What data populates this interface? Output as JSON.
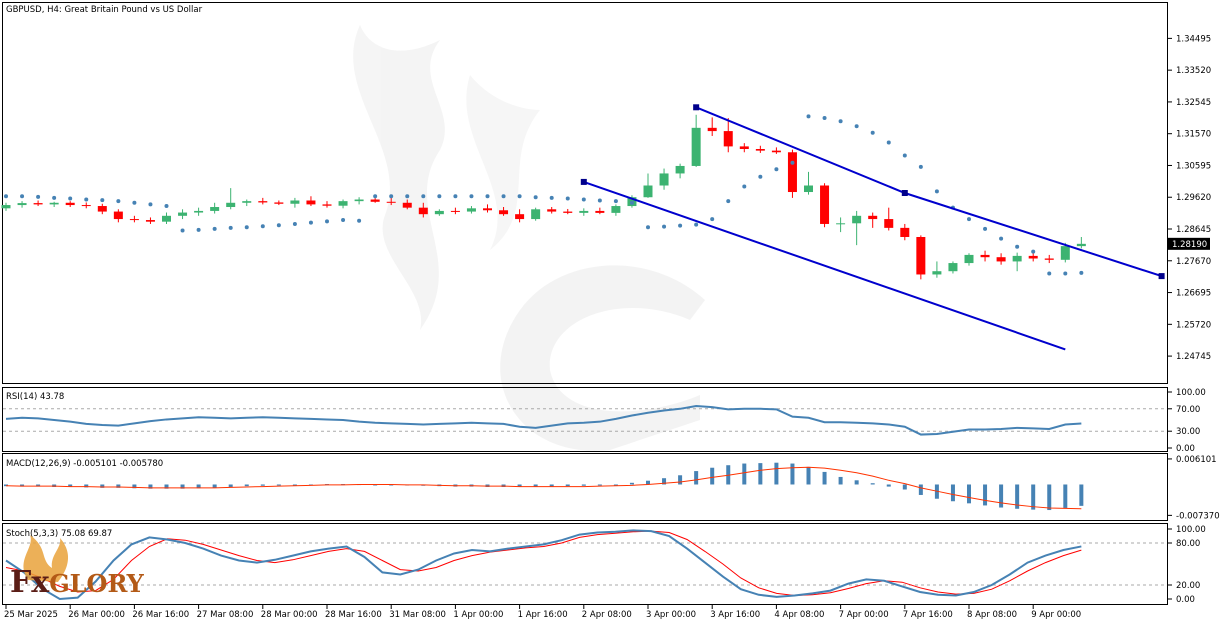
{
  "chart_data": [
    {
      "type": "candlestick",
      "title": "GBPUSD, H4:  Great Britain Pound vs US Dollar",
      "symbol": "GBPUSD",
      "timeframe": "H4",
      "ylim": [
        1.2395,
        1.3555
      ],
      "price_ticks": [
        "1.34495",
        "1.33520",
        "1.32545",
        "1.31570",
        "1.30595",
        "1.29620",
        "1.28645",
        "1.27670",
        "1.26695",
        "1.25720",
        "1.24745"
      ],
      "current_price": "1.28190",
      "x_ticks": [
        "25 Mar 2025",
        "26 Mar 00:00",
        "26 Mar 16:00",
        "27 Mar 08:00",
        "28 Mar 00:00",
        "28 Mar 16:00",
        "31 Mar 08:00",
        "1 Apr 00:00",
        "1 Apr 16:00",
        "2 Apr 08:00",
        "3 Apr 00:00",
        "3 Apr 16:00",
        "4 Apr 08:00",
        "7 Apr 00:00",
        "7 Apr 16:00",
        "8 Apr 08:00",
        "9 Apr 00:00"
      ],
      "candles": [
        [
          1.2928,
          1.2945,
          1.292,
          1.2938
        ],
        [
          1.2938,
          1.295,
          1.293,
          1.2944
        ],
        [
          1.2944,
          1.2952,
          1.2935,
          1.294
        ],
        [
          1.294,
          1.2948,
          1.2932,
          1.2945
        ],
        [
          1.2945,
          1.295,
          1.2932,
          1.2938
        ],
        [
          1.2938,
          1.2946,
          1.2928,
          1.2935
        ],
        [
          1.2935,
          1.2942,
          1.291,
          1.2918
        ],
        [
          1.2918,
          1.2925,
          1.2885,
          1.2895
        ],
        [
          1.2895,
          1.2905,
          1.2885,
          1.2892
        ],
        [
          1.2892,
          1.29,
          1.288,
          1.2887
        ],
        [
          1.2887,
          1.2915,
          1.288,
          1.2905
        ],
        [
          1.2905,
          1.2925,
          1.2895,
          1.2915
        ],
        [
          1.2915,
          1.293,
          1.2905,
          1.292
        ],
        [
          1.292,
          1.2945,
          1.2912,
          1.2932
        ],
        [
          1.2932,
          1.299,
          1.2925,
          1.2945
        ],
        [
          1.2945,
          1.2955,
          1.2935,
          1.295
        ],
        [
          1.295,
          1.296,
          1.294,
          1.2946
        ],
        [
          1.2946,
          1.2952,
          1.2938,
          1.2942
        ],
        [
          1.2942,
          1.296,
          1.293,
          1.2952
        ],
        [
          1.2952,
          1.2965,
          1.2935,
          1.294
        ],
        [
          1.294,
          1.295,
          1.293,
          1.2936
        ],
        [
          1.2936,
          1.2955,
          1.2928,
          1.295
        ],
        [
          1.295,
          1.2962,
          1.294,
          1.2955
        ],
        [
          1.2955,
          1.2965,
          1.2945,
          1.2948
        ],
        [
          1.2948,
          1.296,
          1.2938,
          1.2945
        ],
        [
          1.2945,
          1.2955,
          1.2925,
          1.293
        ],
        [
          1.293,
          1.2945,
          1.29,
          1.291
        ],
        [
          1.291,
          1.2925,
          1.2905,
          1.292
        ],
        [
          1.292,
          1.293,
          1.291,
          1.2918
        ],
        [
          1.2918,
          1.2935,
          1.2912,
          1.2928
        ],
        [
          1.2928,
          1.294,
          1.2915,
          1.2922
        ],
        [
          1.2922,
          1.2932,
          1.2905,
          1.291
        ],
        [
          1.291,
          1.2925,
          1.2885,
          1.2895
        ],
        [
          1.2895,
          1.293,
          1.289,
          1.2925
        ],
        [
          1.2925,
          1.2932,
          1.2912,
          1.2918
        ],
        [
          1.2918,
          1.2926,
          1.291,
          1.2914
        ],
        [
          1.2914,
          1.2928,
          1.2905,
          1.292
        ],
        [
          1.292,
          1.293,
          1.291,
          1.2914
        ],
        [
          1.2914,
          1.294,
          1.2905,
          1.2935
        ],
        [
          1.2935,
          1.2968,
          1.293,
          1.2962
        ],
        [
          1.2962,
          1.3035,
          1.296,
          1.2998
        ],
        [
          1.2998,
          1.305,
          1.2985,
          1.3035
        ],
        [
          1.3035,
          1.3065,
          1.302,
          1.3058
        ],
        [
          1.3058,
          1.3215,
          1.3055,
          1.3175
        ],
        [
          1.3175,
          1.3207,
          1.315,
          1.3165
        ],
        [
          1.3165,
          1.3205,
          1.31,
          1.3118
        ],
        [
          1.3118,
          1.3128,
          1.31,
          1.311
        ],
        [
          1.311,
          1.312,
          1.3098,
          1.3105
        ],
        [
          1.3105,
          1.3115,
          1.3095,
          1.31
        ],
        [
          1.31,
          1.3108,
          1.296,
          1.2978
        ],
        [
          1.2978,
          1.304,
          1.297,
          1.2998
        ],
        [
          1.2998,
          1.3005,
          1.287,
          1.288
        ],
        [
          1.288,
          1.29,
          1.2855,
          1.2882
        ],
        [
          1.2882,
          1.292,
          1.2815,
          1.2905
        ],
        [
          1.2905,
          1.2915,
          1.2868,
          1.2895
        ],
        [
          1.2895,
          1.293,
          1.286,
          1.2868
        ],
        [
          1.2868,
          1.288,
          1.283,
          1.284
        ],
        [
          1.284,
          1.2845,
          1.271,
          1.2725
        ],
        [
          1.2725,
          1.2765,
          1.2715,
          1.2735
        ],
        [
          1.2735,
          1.2765,
          1.2728,
          1.276
        ],
        [
          1.276,
          1.279,
          1.2752,
          1.2785
        ],
        [
          1.2785,
          1.2798,
          1.2765,
          1.2778
        ],
        [
          1.2778,
          1.279,
          1.2755,
          1.2765
        ],
        [
          1.2765,
          1.2792,
          1.2735,
          1.2782
        ],
        [
          1.2782,
          1.2795,
          1.2765,
          1.2774
        ],
        [
          1.2774,
          1.2785,
          1.276,
          1.277
        ],
        [
          1.277,
          1.2822,
          1.2762,
          1.2812
        ],
        [
          1.2812,
          1.284,
          1.2805,
          1.2819
        ]
      ],
      "parabolic_sar": [
        1.2965,
        1.2965,
        1.2963,
        1.296,
        1.2958,
        1.2955,
        1.2953,
        1.295,
        1.2945,
        1.294,
        1.2935,
        1.286,
        1.2862,
        1.2865,
        1.2868,
        1.287,
        1.2873,
        1.2876,
        1.288,
        1.2884,
        1.2888,
        1.2892,
        1.289,
        1.2965,
        1.2965,
        1.2965,
        1.2965,
        1.2965,
        1.2965,
        1.2965,
        1.2965,
        1.2965,
        1.2965,
        1.2962,
        1.296,
        1.2958,
        1.2955,
        1.2952,
        1.295,
        1.2945,
        1.287,
        1.2872,
        1.2875,
        1.2878,
        1.2895,
        1.295,
        1.2995,
        1.3025,
        1.3048,
        1.3068,
        1.321,
        1.3205,
        1.3195,
        1.318,
        1.316,
        1.313,
        1.309,
        1.3055,
        1.298,
        1.293,
        1.2895,
        1.2865,
        1.2835,
        1.281,
        1.2795,
        1.2728,
        1.2728,
        1.273
      ],
      "trend_channel": {
        "upper": [
          [
            43,
            1.3238
          ],
          [
            56,
            1.2975
          ],
          [
            72,
            1.272
          ]
        ],
        "lower": [
          [
            36,
            1.3009
          ],
          [
            66,
            1.2495
          ]
        ]
      },
      "color_up": "#3cb371",
      "color_down": "#ff0000",
      "channel_color": "#0000cd"
    },
    {
      "type": "line",
      "title": "RSI(14) 43.78",
      "ylim": [
        0,
        100
      ],
      "y_ticks": [
        "100.00",
        "70.00",
        "30.00",
        "0.00"
      ],
      "levels": [
        70,
        30
      ],
      "series": [
        {
          "values": [
            52,
            54,
            53,
            50,
            47,
            43,
            41,
            40,
            44,
            48,
            51,
            53,
            55,
            54,
            53,
            54,
            55,
            54,
            53,
            52,
            51,
            50,
            47,
            45,
            44,
            43,
            42,
            43,
            44,
            45,
            44,
            43,
            38,
            36,
            40,
            44,
            45,
            47,
            52,
            58,
            63,
            67,
            70,
            75,
            73,
            69,
            70,
            70,
            69,
            56,
            54,
            46,
            46,
            45,
            44,
            42,
            38,
            24,
            25,
            29,
            33,
            33,
            34,
            36,
            35,
            34,
            42,
            43.78
          ]
        }
      ],
      "color": "#4682b4"
    },
    {
      "type": "bar",
      "title": "MACD(12,26,9) -0.005101 -0.005780",
      "ylim": [
        -0.008,
        0.0068
      ],
      "y_ticks": [
        "0.006101",
        "-0.007370"
      ],
      "series": [
        {
          "name": "MACD",
          "values": [
            -0.0004,
            -0.0005,
            -0.0005,
            -0.0006,
            -0.0006,
            -0.0007,
            -0.0008,
            -0.0008,
            -0.0009,
            -0.001,
            -0.001,
            -0.001,
            -0.0009,
            -0.0008,
            -0.0006,
            -0.0004,
            -0.0003,
            -0.0002,
            -0.0001,
            0.0,
            0.0001,
            0.0001,
            0.0001,
            0.0,
            -0.0001,
            -0.0002,
            -0.0003,
            -0.0004,
            -0.0005,
            -0.0005,
            -0.0006,
            -0.0006,
            -0.0006,
            -0.0006,
            -0.0005,
            -0.0004,
            -0.0003,
            -0.0002,
            -0.0001,
            0.0004,
            0.0009,
            0.0015,
            0.0022,
            0.0032,
            0.004,
            0.0046,
            0.005,
            0.0051,
            0.0052,
            0.005,
            0.0042,
            0.003,
            0.0018,
            0.001,
            0.0003,
            -0.0005,
            -0.0012,
            -0.0025,
            -0.0034,
            -0.004,
            -0.0045,
            -0.005,
            -0.0055,
            -0.0058,
            -0.006,
            -0.0061,
            -0.0056,
            -0.005101
          ]
        },
        {
          "name": "Signal",
          "values": [
            -0.0003,
            -0.0004,
            -0.0004,
            -0.0004,
            -0.0005,
            -0.0005,
            -0.0006,
            -0.0006,
            -0.0007,
            -0.0008,
            -0.0008,
            -0.0008,
            -0.0008,
            -0.0008,
            -0.0007,
            -0.0006,
            -0.0005,
            -0.0004,
            -0.0003,
            -0.0002,
            -0.0001,
            -0.0001,
            0.0,
            0.0,
            0.0,
            -0.0001,
            -0.0001,
            -0.0002,
            -0.0003,
            -0.0003,
            -0.0004,
            -0.0004,
            -0.0005,
            -0.0005,
            -0.0005,
            -0.0005,
            -0.0005,
            -0.0004,
            -0.0003,
            -0.0002,
            0.0,
            0.0003,
            0.0006,
            0.0011,
            0.0017,
            0.0022,
            0.0028,
            0.0034,
            0.0038,
            0.004,
            0.0041,
            0.0039,
            0.0034,
            0.0028,
            0.002,
            0.001,
            0.0002,
            -0.0008,
            -0.0016,
            -0.0024,
            -0.0031,
            -0.0038,
            -0.0044,
            -0.0049,
            -0.0053,
            -0.0056,
            -0.0057,
            -0.00578
          ]
        }
      ],
      "color_hist": "#4682b4",
      "color_signal": "#ff3300"
    },
    {
      "type": "line",
      "title": "Stoch(5,3,3) 75.08 69.87",
      "ylim": [
        0,
        100
      ],
      "y_ticks": [
        "100.00",
        "80.00",
        "20.00",
        "0.00"
      ],
      "levels": [
        80,
        20
      ],
      "series": [
        {
          "name": "%K",
          "values": [
            55,
            38,
            15,
            0,
            2,
            25,
            55,
            78,
            88,
            85,
            80,
            72,
            62,
            55,
            52,
            56,
            62,
            68,
            72,
            75,
            60,
            38,
            35,
            42,
            55,
            65,
            70,
            68,
            72,
            75,
            78,
            84,
            92,
            95,
            96,
            98,
            97,
            90,
            72,
            52,
            32,
            14,
            6,
            3,
            5,
            8,
            12,
            22,
            28,
            26,
            18,
            10,
            6,
            5,
            10,
            20,
            35,
            52,
            62,
            70,
            75.08
          ]
        },
        {
          "name": "%D",
          "values": [
            45,
            40,
            30,
            18,
            10,
            12,
            28,
            55,
            75,
            86,
            84,
            78,
            70,
            62,
            55,
            52,
            56,
            62,
            68,
            72,
            68,
            55,
            42,
            40,
            45,
            55,
            62,
            67,
            70,
            73,
            75,
            80,
            88,
            92,
            94,
            96,
            97,
            95,
            85,
            68,
            50,
            30,
            16,
            8,
            5,
            6,
            9,
            15,
            22,
            26,
            24,
            16,
            10,
            7,
            8,
            14,
            26,
            40,
            52,
            62,
            69.87
          ]
        }
      ],
      "color_main": "#4682b4",
      "color_signal": "#ff0000"
    }
  ],
  "watermark": {
    "brand": "FxGlory",
    "text_fx": "Fx",
    "text_glory": "GLORY"
  }
}
